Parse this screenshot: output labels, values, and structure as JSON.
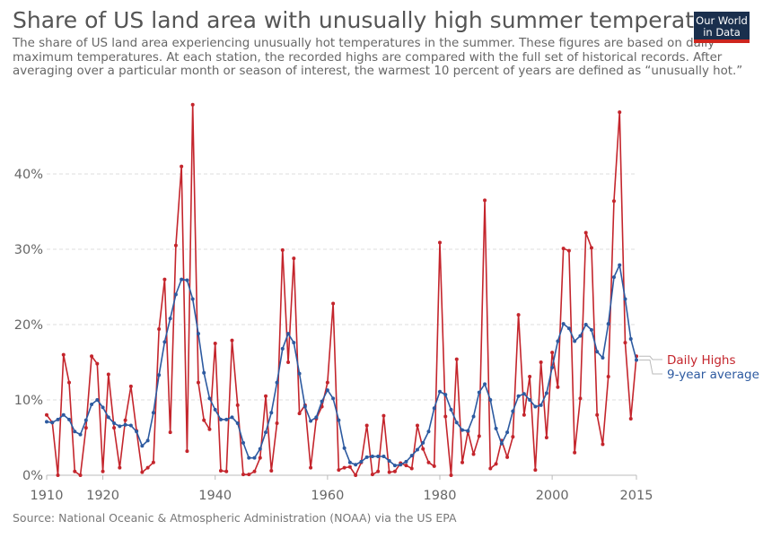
{
  "title": "Share of US land area with unusually high summer temperatures",
  "subtitle": "The share of US land area experiencing unusually hot temperatures in the summer. These figures are based on daily maximum temperatures. At each station, the recorded highs are compared with the full set of historical records. After averaging over a particular month or season of interest, the warmest 10 percent of years are defined as “unusually hot.”",
  "logo_line1": "Our World",
  "logo_line2": "in Data",
  "source": "Source: National Oceanic & Atmospheric Administration (NOAA) via the US EPA",
  "colors": {
    "daily": "#c4252c",
    "avg": "#2d5aa0",
    "grid": "#dddddd",
    "text": "#666666"
  },
  "chart_data": {
    "type": "line",
    "title": "Share of US land area with unusually high summer temperatures",
    "xlim": [
      1910,
      2015
    ],
    "ylim": [
      0,
      50
    ],
    "x_ticks": [
      "1910",
      "1920",
      "1940",
      "1960",
      "1980",
      "2000",
      "2015"
    ],
    "x_tick_values": [
      1910,
      1920,
      1940,
      1960,
      1980,
      2000,
      2015
    ],
    "y_ticks": [
      "0%",
      "10%",
      "20%",
      "30%",
      "40%"
    ],
    "y_tick_values": [
      0,
      10,
      20,
      30,
      40
    ],
    "grid": true,
    "legend_position": "right",
    "years": [
      1910,
      1911,
      1912,
      1913,
      1914,
      1915,
      1916,
      1917,
      1918,
      1919,
      1920,
      1921,
      1922,
      1923,
      1924,
      1925,
      1926,
      1927,
      1928,
      1929,
      1930,
      1931,
      1932,
      1933,
      1934,
      1935,
      1936,
      1937,
      1938,
      1939,
      1940,
      1941,
      1942,
      1943,
      1944,
      1945,
      1946,
      1947,
      1948,
      1949,
      1950,
      1951,
      1952,
      1953,
      1954,
      1955,
      1956,
      1957,
      1958,
      1959,
      1960,
      1961,
      1962,
      1963,
      1964,
      1965,
      1966,
      1967,
      1968,
      1969,
      1970,
      1971,
      1972,
      1973,
      1974,
      1975,
      1976,
      1977,
      1978,
      1979,
      1980,
      1981,
      1982,
      1983,
      1984,
      1985,
      1986,
      1987,
      1988,
      1989,
      1990,
      1991,
      1992,
      1993,
      1994,
      1995,
      1996,
      1997,
      1998,
      1999,
      2000,
      2001,
      2002,
      2003,
      2004,
      2005,
      2006,
      2007,
      2008,
      2009,
      2010,
      2011,
      2012,
      2013,
      2014,
      2015
    ],
    "series": [
      {
        "name": "Daily Highs",
        "values": [
          8,
          7,
          0,
          16,
          12.3,
          0.5,
          0,
          6.3,
          15.8,
          14.8,
          0.5,
          13.4,
          6.3,
          1,
          7.3,
          11.8,
          5.9,
          0.4,
          1,
          1.7,
          19.4,
          26,
          5.7,
          30.5,
          41,
          3.2,
          49.2,
          12.3,
          7.3,
          6.1,
          17.5,
          0.6,
          0.5,
          17.9,
          9.3,
          0.1,
          0.1,
          0.5,
          2.3,
          10.5,
          0.6,
          6.9,
          29.9,
          15,
          28.8,
          8.2,
          9.3,
          1,
          7.5,
          9.1,
          12.3,
          22.8,
          0.7,
          1,
          1.1,
          0,
          1.7,
          6.6,
          0.1,
          0.5,
          7.9,
          0.4,
          0.5,
          1.6,
          1.3,
          0.9,
          6.6,
          3.5,
          1.7,
          1.2,
          30.9,
          7.8,
          0,
          15.4,
          1.7,
          5.8,
          2.8,
          5.2,
          36.5,
          0.9,
          1.5,
          4.6,
          2.4,
          5.1,
          21.3,
          8,
          13.1,
          0.7,
          15,
          5,
          16.3,
          11.7,
          30.1,
          29.8,
          3,
          10.2,
          32.2,
          30.2,
          8,
          4.1,
          13.1,
          36.4,
          48.2,
          17.6,
          7.5,
          15.8
        ]
      },
      {
        "name": "9-year average",
        "values": [
          7.1,
          7,
          7.4,
          8,
          7.4,
          5.8,
          5.4,
          7.3,
          9.4,
          10,
          9,
          7.7,
          6.9,
          6.5,
          6.7,
          6.6,
          5.8,
          3.9,
          4.6,
          8.3,
          13.3,
          17.7,
          20.8,
          24,
          26,
          25.9,
          23.4,
          18.8,
          13.6,
          10.2,
          8.7,
          7.4,
          7.4,
          7.7,
          6.9,
          4.3,
          2.3,
          2.3,
          3.5,
          5.7,
          8.3,
          12.3,
          16.8,
          18.8,
          17.6,
          13.5,
          9.1,
          7.2,
          7.7,
          9.8,
          11.3,
          10.2,
          7.3,
          3.6,
          1.7,
          1.4,
          1.8,
          2.4,
          2.5,
          2.5,
          2.5,
          1.9,
          1.3,
          1.4,
          1.8,
          2.6,
          3.4,
          4.3,
          5.8,
          8.9,
          11.1,
          10.7,
          8.7,
          7,
          6,
          5.9,
          7.8,
          11,
          12.1,
          10,
          6.2,
          4.2,
          5.7,
          8.5,
          10.5,
          10.8,
          10,
          9.1,
          9.3,
          10.9,
          14.3,
          17.8,
          20.1,
          19.5,
          17.8,
          18.5,
          20,
          19.3,
          16.4,
          15.6,
          20.1,
          26.3,
          27.9,
          23.4,
          18.1,
          15.3
        ]
      }
    ]
  }
}
